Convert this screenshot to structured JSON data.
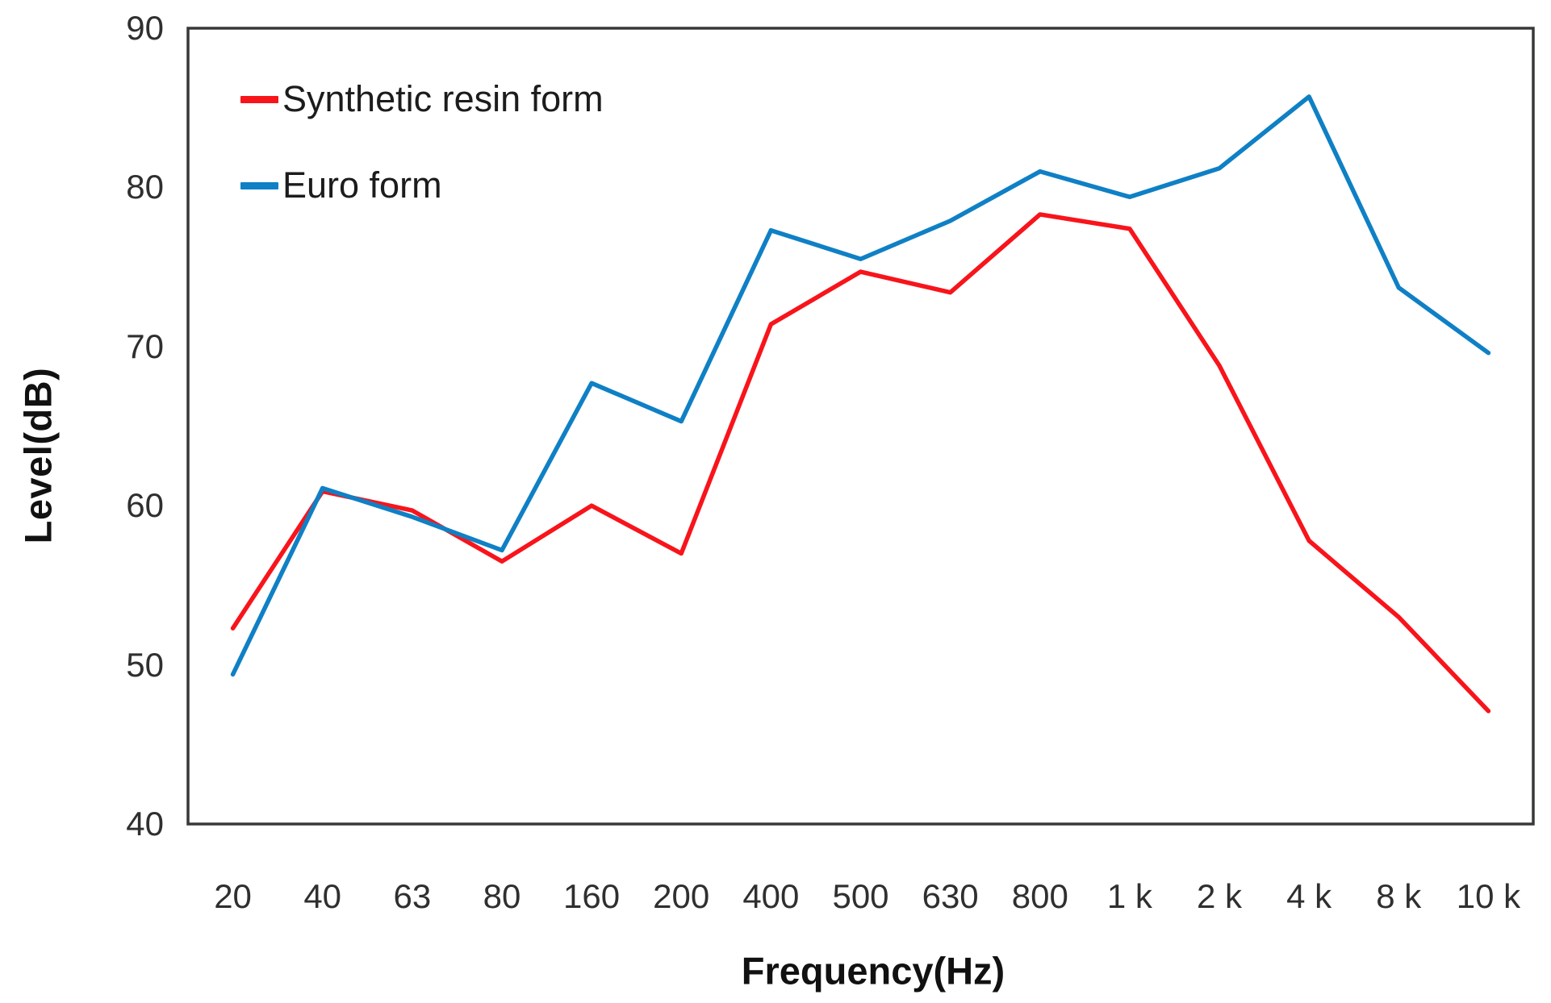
{
  "chart_data": {
    "type": "line",
    "title": "",
    "xlabel": "Frequency(Hz)",
    "ylabel": "Level(dB)",
    "categories": [
      "20",
      "40",
      "63",
      "80",
      "160",
      "200",
      "400",
      "500",
      "630",
      "800",
      "1 k",
      "2 k",
      "4 k",
      "8 k",
      "10 k"
    ],
    "yticks": [
      40,
      50,
      60,
      70,
      80,
      90
    ],
    "ylim": [
      40,
      90
    ],
    "grid": false,
    "legend_position": "top-left-inside",
    "frame_color": "#383838",
    "tick_text_color": "#2f2f2f",
    "series": [
      {
        "name": "Synthetic resin form",
        "color": "#f8141b",
        "values": [
          52.3,
          60.9,
          59.7,
          56.5,
          60.0,
          57.0,
          71.4,
          74.7,
          73.4,
          78.3,
          77.4,
          68.8,
          57.8,
          53.0,
          47.1
        ]
      },
      {
        "name": "Euro form",
        "color": "#0f80c5",
        "values": [
          49.4,
          61.1,
          59.3,
          57.2,
          67.7,
          65.3,
          77.3,
          75.5,
          77.9,
          81.0,
          79.4,
          81.2,
          85.7,
          73.7,
          69.6
        ]
      }
    ]
  }
}
